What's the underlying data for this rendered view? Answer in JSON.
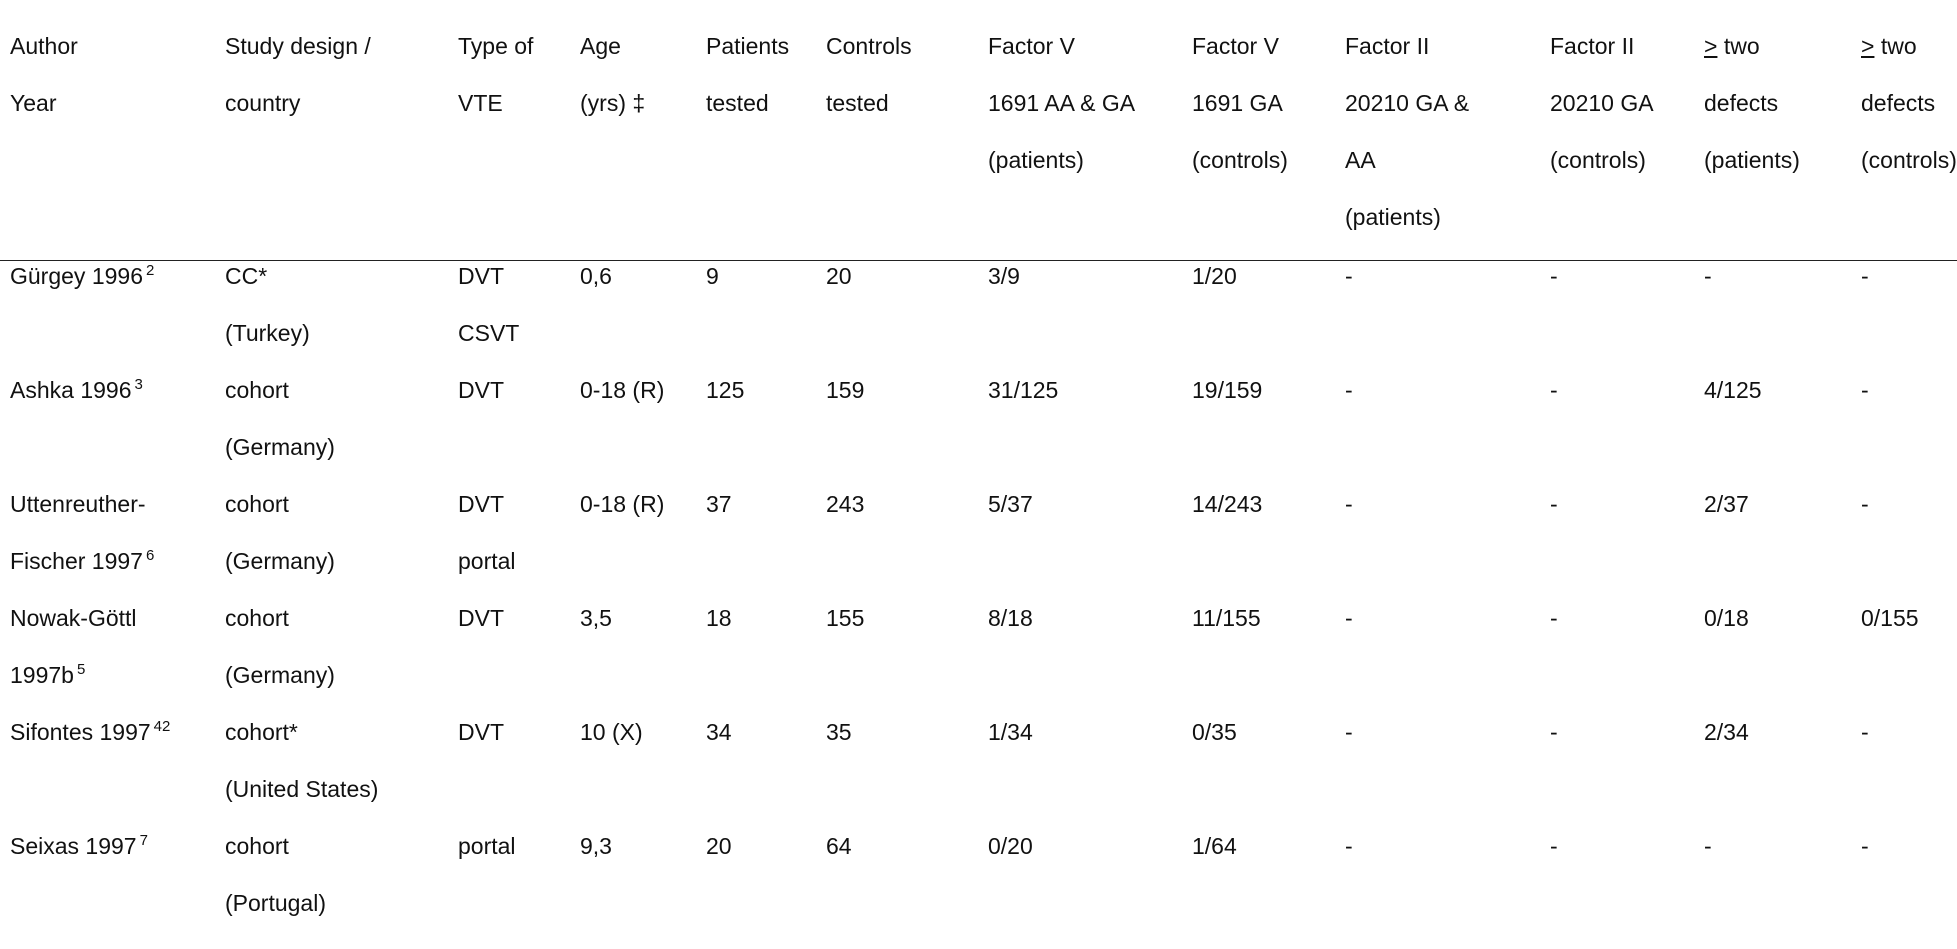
{
  "columns": [
    {
      "lines": [
        "Author",
        "Year"
      ]
    },
    {
      "lines": [
        "Study design /",
        "country"
      ]
    },
    {
      "lines": [
        "Type of",
        "VTE"
      ]
    },
    {
      "lines": [
        "Age",
        "(yrs) ‡"
      ]
    },
    {
      "lines": [
        "Patients",
        "tested"
      ]
    },
    {
      "lines": [
        "Controls",
        "tested"
      ]
    },
    {
      "lines": [
        "Factor V",
        "1691  AA & GA",
        "(patients)"
      ]
    },
    {
      "lines": [
        "Factor V",
        "1691 GA",
        "(controls)"
      ]
    },
    {
      "lines": [
        "Factor II",
        "20210 GA &",
        "AA",
        "(patients)"
      ]
    },
    {
      "lines": [
        "Factor II",
        "20210 GA",
        "(controls)"
      ]
    },
    {
      "lines": [
        "> two",
        "defects",
        "(patients)"
      ]
    },
    {
      "lines": [
        "> two",
        "defects",
        "(controls)"
      ]
    }
  ],
  "rows": [
    {
      "author": [
        "Gürgey 1996"
      ],
      "ref": "2",
      "design": [
        "CC*",
        "(Turkey)"
      ],
      "vte": [
        "DVT",
        "CSVT"
      ],
      "age": "0,6",
      "patients": "9",
      "controls": "20",
      "fv_patients": "3/9",
      "fv_controls": "1/20",
      "fii_patients": "-",
      "fii_controls": "-",
      "two_patients": "-",
      "two_controls": "-"
    },
    {
      "author": [
        "Ashka 1996"
      ],
      "ref": "3",
      "design": [
        "cohort",
        "(Germany)"
      ],
      "vte": [
        "DVT"
      ],
      "age": "0-18 (R)",
      "patients": "125",
      "controls": "159",
      "fv_patients": "31/125",
      "fv_controls": "19/159",
      "fii_patients": "-",
      "fii_controls": "-",
      "two_patients": "4/125",
      "two_controls": "-"
    },
    {
      "author": [
        "Uttenreuther-",
        "Fischer 1997"
      ],
      "ref": "6",
      "design": [
        "cohort",
        "(Germany)"
      ],
      "vte": [
        "DVT",
        "portal"
      ],
      "age": "0-18 (R)",
      "patients": "37",
      "controls": "243",
      "fv_patients": "5/37",
      "fv_controls": "14/243",
      "fii_patients": "-",
      "fii_controls": "-",
      "two_patients": "2/37",
      "two_controls": "-"
    },
    {
      "author": [
        "Nowak-Göttl",
        "1997b"
      ],
      "ref": "5",
      "design": [
        "cohort",
        "(Germany)"
      ],
      "vte": [
        "DVT"
      ],
      "age": "3,5",
      "patients": "18",
      "controls": "155",
      "fv_patients": "8/18",
      "fv_controls": "11/155",
      "fii_patients": "-",
      "fii_controls": "-",
      "two_patients": "0/18",
      "two_controls": "0/155"
    },
    {
      "author": [
        "Sifontes 1997"
      ],
      "ref": "42",
      "design": [
        "cohort*",
        "(United States)"
      ],
      "vte": [
        "DVT"
      ],
      "age": "10 (X)",
      "patients": "34",
      "controls": "35",
      "fv_patients": "1/34",
      "fv_controls": "0/35",
      "fii_patients": "-",
      "fii_controls": "-",
      "two_patients": "2/34",
      "two_controls": "-"
    },
    {
      "author": [
        "Seixas 1997"
      ],
      "ref": "7",
      "design": [
        "cohort",
        "(Portugal)"
      ],
      "vte": [
        "portal"
      ],
      "age": "9,3",
      "patients": "20",
      "controls": "64",
      "fv_patients": "0/20",
      "fv_controls": "1/64",
      "fii_patients": "-",
      "fii_controls": "-",
      "two_patients": "-",
      "two_controls": "-"
    }
  ]
}
